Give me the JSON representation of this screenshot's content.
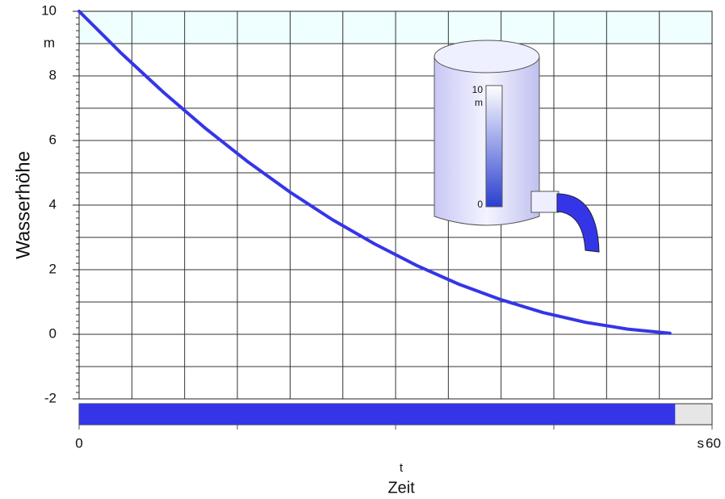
{
  "chart_data": {
    "type": "line",
    "y_label": "Wasserhöhe",
    "y_unit": "m",
    "x_symbol": "t",
    "x_label": "Zeit",
    "x_unit": "s",
    "x": [
      0,
      4,
      8,
      12,
      16,
      20,
      24,
      28,
      32,
      36,
      40,
      44,
      48,
      52,
      56
    ],
    "series": [
      {
        "name": "Wasserhöhe",
        "color": "#3535e8",
        "values": [
          10,
          8.7,
          7.49,
          6.37,
          5.34,
          4.4,
          3.55,
          2.8,
          2.13,
          1.55,
          1.07,
          0.67,
          0.37,
          0.16,
          0.03
        ]
      }
    ],
    "xlim": [
      0,
      60
    ],
    "xticks": [
      0,
      60
    ],
    "x_tick_marks": [
      15,
      30,
      45
    ],
    "xgrid_step": 5,
    "ylim": [
      -2,
      10
    ],
    "yticks": [
      10,
      8,
      6,
      4,
      2,
      0,
      -2
    ],
    "ygrid_step": 1,
    "grid": true,
    "progress": 56.5,
    "progress_color": "#3535e8",
    "tank": {
      "scale_top": "10",
      "scale_unit": "m",
      "scale_bottom": "0"
    }
  }
}
